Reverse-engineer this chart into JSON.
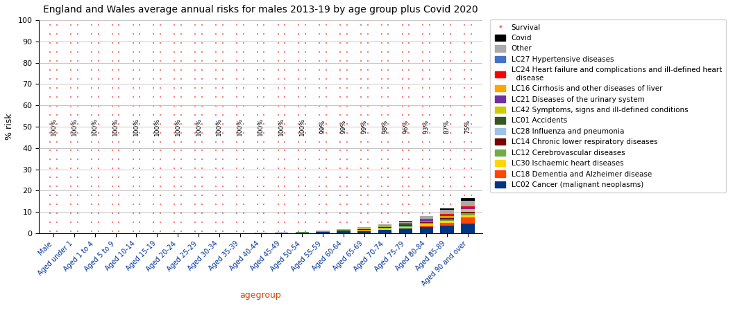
{
  "title": "England and Wales average annual risks for males 2013-19 by age group plus Covid 2020",
  "xlabel": "agegroup",
  "ylabel": "% risk",
  "categories": [
    "Male",
    "Aged under 1",
    "Aged 1 to 4",
    "Aged 5 to 9",
    "Aged 10-14",
    "Aged 15-19",
    "Aged 20-24",
    "Aged 25-29",
    "Aged 30-34",
    "Aged 35-39",
    "Aged 40-44",
    "Aged 45-49",
    "Aged 50-54",
    "Aged 55-59",
    "Aged 60-64",
    "Aged 65-69",
    "Aged 70-74",
    "Aged 75-79",
    "Aged 80-84",
    "Aged 85-89",
    "Aged 90 and over"
  ],
  "survival_labels": [
    "100%",
    "100%",
    "100%",
    "100%",
    "100%",
    "100%",
    "100%",
    "100%",
    "100%",
    "100%",
    "100%",
    "100%",
    "100%",
    "99%",
    "99%",
    "99%",
    "98%",
    "96%",
    "93%",
    "87%",
    "75%"
  ],
  "legend_labels": [
    "Survival",
    "Covid",
    "Other",
    "LC27 Hypertensive diseases",
    "LC24 Heart failure and complications and ill-defined heart\n  disease",
    "LC16 Cirrhosis and other diseases of liver",
    "LC21 Diseases of the urinary system",
    "LC42 Symptoms, signs and ill-defined conditions",
    "LC01 Accidents",
    "LC28 Influenza and pneumonia",
    "LC14 Chronic lower respiratory diseases",
    "LC12 Cerebrovascular diseases",
    "LC30 Ischaemic heart diseases",
    "LC18 Dementia and Alzheimer disease",
    "LC02 Cancer (malignant neoplasms)"
  ],
  "legend_colors": [
    "#FF9999",
    "#000000",
    "#AAAAAA",
    "#4472C4",
    "#FF0000",
    "#FFA500",
    "#7030A0",
    "#CCCC00",
    "#375623",
    "#9DC3E6",
    "#7B0000",
    "#70AD47",
    "#FFD700",
    "#FF4500",
    "#003580"
  ],
  "series_colors": {
    "covid": "#000000",
    "other": "#AAAAAA",
    "lc27": "#4472C4",
    "lc24": "#FF0000",
    "lc16": "#FFA500",
    "lc21": "#7030A0",
    "lc42": "#CCCC00",
    "lc01": "#375623",
    "lc28": "#9DC3E6",
    "lc14": "#7B0000",
    "lc12": "#70AD47",
    "lc30": "#FFD700",
    "lc18": "#FF4500",
    "lc02": "#003580"
  },
  "ylim": [
    0,
    100
  ],
  "yticks": [
    0,
    10,
    20,
    30,
    40,
    50,
    60,
    70,
    80,
    90,
    100
  ],
  "dot_color": "#FF7777",
  "dot_bg": "#FFFFFF"
}
